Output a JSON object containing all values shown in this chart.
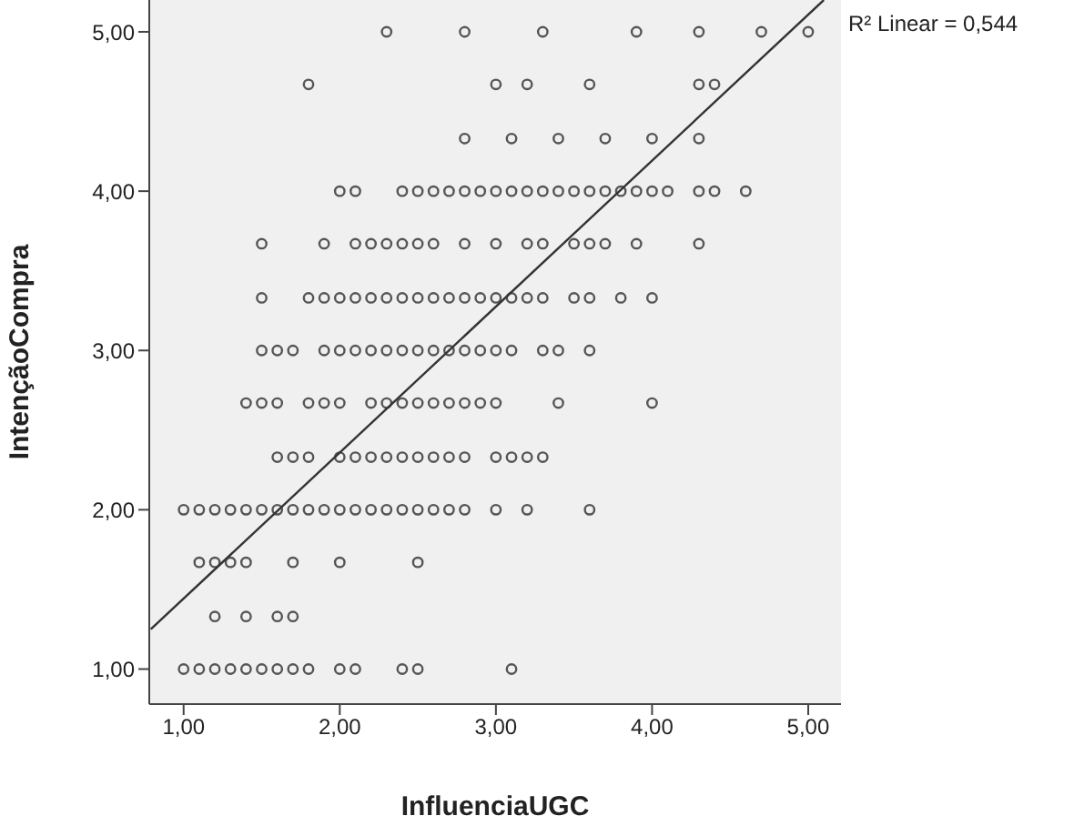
{
  "chart_data": {
    "type": "scatter",
    "xlabel": "InfluenciaUGC",
    "ylabel": "IntençãoCompra",
    "annotations": [
      "R² Linear = 0,544"
    ],
    "marker": "circle",
    "xlim": [
      0.78,
      5.21
    ],
    "ylim": [
      0.78,
      5.2
    ],
    "xticks": [
      {
        "value": 1,
        "label": "1,00"
      },
      {
        "value": 2,
        "label": "2,00"
      },
      {
        "value": 3,
        "label": "3,00"
      },
      {
        "value": 4,
        "label": "4,00"
      },
      {
        "value": 5,
        "label": "5,00"
      }
    ],
    "yticks": [
      {
        "value": 1,
        "label": "1,00"
      },
      {
        "value": 2,
        "label": "2,00"
      },
      {
        "value": 3,
        "label": "3,00"
      },
      {
        "value": 4,
        "label": "4,00"
      },
      {
        "value": 5,
        "label": "5,00"
      }
    ],
    "series": [
      {
        "color": "#555555",
        "x": [
          1.0,
          1.1,
          1.2,
          1.3,
          1.4,
          1.5,
          1.6,
          1.7,
          1.8,
          2.0,
          2.1,
          2.4,
          2.5,
          3.1,
          1.2,
          1.4,
          1.6,
          1.7,
          1.1,
          1.2,
          1.3,
          1.4,
          1.7,
          2.0,
          2.5,
          1.0,
          1.1,
          1.2,
          1.3,
          1.4,
          1.5,
          1.6,
          1.7,
          1.8,
          1.9,
          2.0,
          2.1,
          2.2,
          2.3,
          2.4,
          2.5,
          2.6,
          2.7,
          2.8,
          3.0,
          3.2,
          3.6,
          1.6,
          1.7,
          1.8,
          2.0,
          2.1,
          2.2,
          2.3,
          2.4,
          2.5,
          2.6,
          2.7,
          2.8,
          3.0,
          3.1,
          3.2,
          3.3,
          1.4,
          1.5,
          1.6,
          1.8,
          1.9,
          2.0,
          2.2,
          2.3,
          2.4,
          2.5,
          2.6,
          2.7,
          2.8,
          2.9,
          3.0,
          3.4,
          4.0,
          1.5,
          1.6,
          1.7,
          1.9,
          2.0,
          2.1,
          2.2,
          2.3,
          2.4,
          2.5,
          2.6,
          2.7,
          2.8,
          2.9,
          3.0,
          3.1,
          3.3,
          3.4,
          3.6,
          1.5,
          1.8,
          1.9,
          2.0,
          2.1,
          2.2,
          2.3,
          2.4,
          2.5,
          2.6,
          2.7,
          2.8,
          2.9,
          3.0,
          3.1,
          3.2,
          3.3,
          3.5,
          3.6,
          3.8,
          4.0,
          1.5,
          1.9,
          2.1,
          2.2,
          2.3,
          2.4,
          2.5,
          2.6,
          2.8,
          3.0,
          3.2,
          3.3,
          3.5,
          3.6,
          3.7,
          3.9,
          4.3,
          2.0,
          2.1,
          2.4,
          2.5,
          2.6,
          2.7,
          2.8,
          2.9,
          3.0,
          3.1,
          3.2,
          3.3,
          3.4,
          3.5,
          3.6,
          3.7,
          3.8,
          3.9,
          4.0,
          4.1,
          4.3,
          4.4,
          4.6,
          2.8,
          3.1,
          3.4,
          3.7,
          4.0,
          4.3,
          1.8,
          3.0,
          3.2,
          3.6,
          4.3,
          4.4,
          2.3,
          2.8,
          3.3,
          3.9,
          4.3,
          4.7,
          5.0
        ],
        "values": [
          1,
          1,
          1,
          1,
          1,
          1,
          1,
          1,
          1,
          1,
          1,
          1,
          1,
          1,
          1.33,
          1.33,
          1.33,
          1.33,
          1.67,
          1.67,
          1.67,
          1.67,
          1.67,
          1.67,
          1.67,
          2,
          2,
          2,
          2,
          2,
          2,
          2,
          2,
          2,
          2,
          2,
          2,
          2,
          2,
          2,
          2,
          2,
          2,
          2,
          2,
          2,
          2,
          2.33,
          2.33,
          2.33,
          2.33,
          2.33,
          2.33,
          2.33,
          2.33,
          2.33,
          2.33,
          2.33,
          2.33,
          2.33,
          2.33,
          2.33,
          2.33,
          2.67,
          2.67,
          2.67,
          2.67,
          2.67,
          2.67,
          2.67,
          2.67,
          2.67,
          2.67,
          2.67,
          2.67,
          2.67,
          2.67,
          2.67,
          2.67,
          2.67,
          3,
          3,
          3,
          3,
          3,
          3,
          3,
          3,
          3,
          3,
          3,
          3,
          3,
          3,
          3,
          3,
          3,
          3,
          3,
          3.33,
          3.33,
          3.33,
          3.33,
          3.33,
          3.33,
          3.33,
          3.33,
          3.33,
          3.33,
          3.33,
          3.33,
          3.33,
          3.33,
          3.33,
          3.33,
          3.33,
          3.33,
          3.33,
          3.33,
          3.33,
          3.67,
          3.67,
          3.67,
          3.67,
          3.67,
          3.67,
          3.67,
          3.67,
          3.67,
          3.67,
          3.67,
          3.67,
          3.67,
          3.67,
          3.67,
          3.67,
          3.67,
          4,
          4,
          4,
          4,
          4,
          4,
          4,
          4,
          4,
          4,
          4,
          4,
          4,
          4,
          4,
          4,
          4,
          4,
          4,
          4,
          4,
          4,
          4,
          4.33,
          4.33,
          4.33,
          4.33,
          4.33,
          4.33,
          4.67,
          4.67,
          4.67,
          4.67,
          4.67,
          4.67,
          5,
          5,
          5,
          5,
          5,
          5,
          5
        ]
      },
      {
        "type": "line",
        "marker": "none",
        "color": "#333333",
        "x": [
          0.79,
          5.1
        ],
        "values": [
          1.25,
          5.2
        ]
      }
    ]
  }
}
